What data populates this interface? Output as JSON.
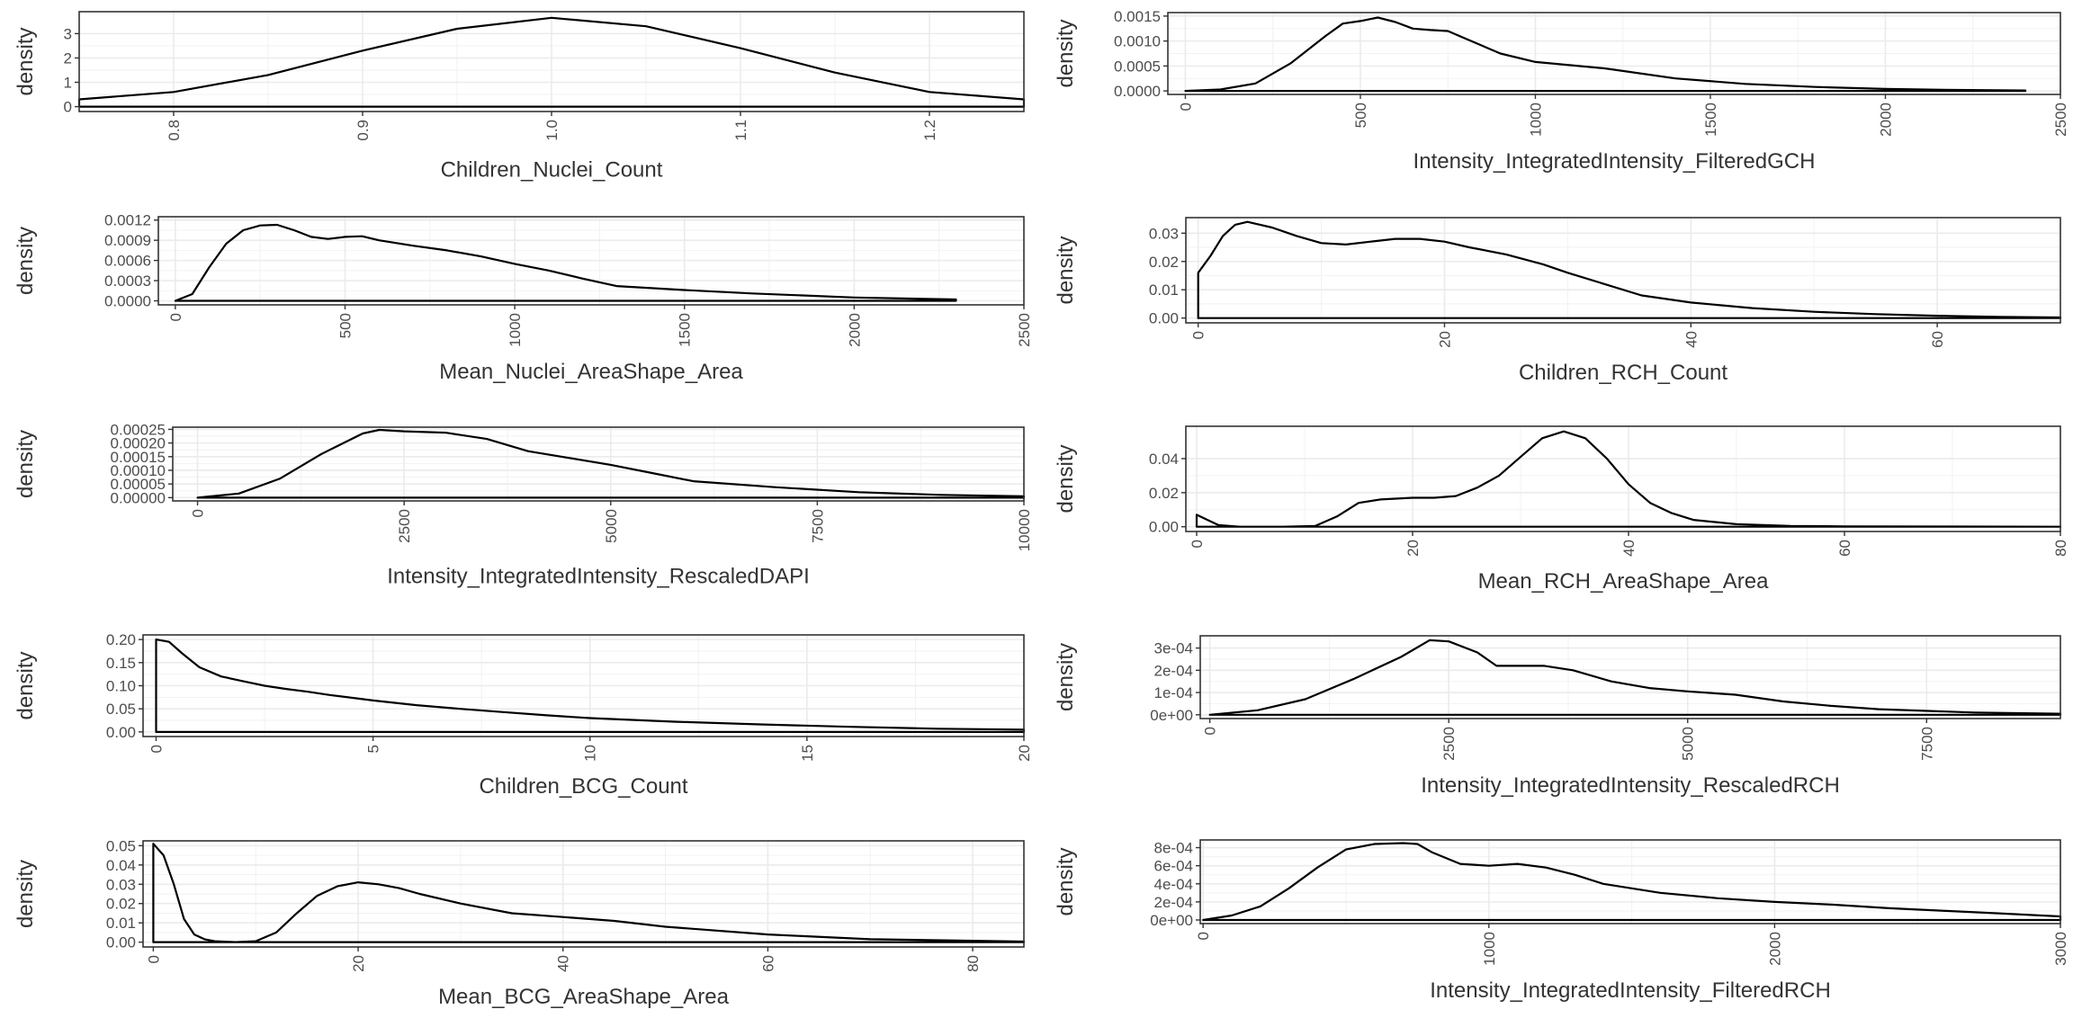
{
  "figure": {
    "background": "#ffffff",
    "grid_color": "#ebebeb",
    "grid_minor_color": "#f2f2f2",
    "line_color": "#000000",
    "text_color": "#4d4d4d",
    "title_color": "#333333"
  },
  "chart_data": [
    {
      "type": "line",
      "xlabel": "Children_Nuclei_Count",
      "ylabel": "density",
      "xlim": [
        0.75,
        1.25
      ],
      "ylim": [
        -0.2,
        3.9
      ],
      "grid": true,
      "xticks": [
        0.8,
        0.9,
        1.0,
        1.1,
        1.2
      ],
      "xtick_labels": [
        "0.8",
        "0.9",
        "1.0",
        "1.1",
        "1.2"
      ],
      "yticks": [
        0,
        1,
        2,
        3
      ],
      "ytick_labels": [
        "0",
        "1",
        "2",
        "3"
      ],
      "series": [
        {
          "x": [
            0.75,
            0.8,
            0.85,
            0.9,
            0.95,
            1.0,
            1.05,
            1.1,
            1.15,
            1.2,
            1.25
          ],
          "y": [
            0.3,
            0.6,
            1.3,
            2.3,
            3.2,
            3.65,
            3.3,
            2.4,
            1.4,
            0.6,
            0.3
          ]
        }
      ]
    },
    {
      "type": "line",
      "xlabel": "Intensity_IntegratedIntensity_FilteredGCH",
      "ylabel": "density",
      "xlim": [
        -50,
        2500
      ],
      "ylim": [
        -7e-05,
        0.00157
      ],
      "grid": true,
      "xticks": [
        0,
        500,
        1000,
        1500,
        2000,
        2500
      ],
      "xtick_labels": [
        "0",
        "500",
        "1000",
        "1500",
        "2000",
        "2500"
      ],
      "yticks": [
        0,
        0.0005,
        0.001,
        0.0015
      ],
      "ytick_labels": [
        "0.0000",
        "0.0005",
        "0.0010",
        "0.0015"
      ],
      "series": [
        {
          "x": [
            0,
            100,
            200,
            300,
            400,
            450,
            500,
            550,
            600,
            650,
            700,
            750,
            800,
            900,
            1000,
            1200,
            1400,
            1600,
            1800,
            2000,
            2200,
            2400
          ],
          "y": [
            0,
            3e-05,
            0.00015,
            0.00055,
            0.0011,
            0.00135,
            0.0014,
            0.00147,
            0.00138,
            0.00125,
            0.00122,
            0.0012,
            0.00105,
            0.00075,
            0.00058,
            0.00045,
            0.00025,
            0.00014,
            8e-05,
            4e-05,
            2e-05,
            1e-05
          ]
        }
      ]
    },
    {
      "type": "line",
      "xlabel": "Mean_Nuclei_AreaShape_Area",
      "ylabel": "density",
      "xlim": [
        -50,
        2500
      ],
      "ylim": [
        -6e-05,
        0.00125
      ],
      "grid": true,
      "xticks": [
        0,
        500,
        1000,
        1500,
        2000,
        2500
      ],
      "xtick_labels": [
        "0",
        "500",
        "1000",
        "1500",
        "2000",
        "2500"
      ],
      "yticks": [
        0,
        0.0003,
        0.0006,
        0.0009,
        0.0012
      ],
      "ytick_labels": [
        "0.0000",
        "0.0003",
        "0.0006",
        "0.0009",
        "0.0012"
      ],
      "series": [
        {
          "x": [
            0,
            50,
            100,
            150,
            200,
            250,
            300,
            350,
            400,
            450,
            500,
            550,
            600,
            700,
            800,
            900,
            1000,
            1100,
            1200,
            1300,
            1500,
            1700,
            2000,
            2300
          ],
          "y": [
            0,
            0.0001,
            0.0005,
            0.00085,
            0.00105,
            0.00112,
            0.00113,
            0.00105,
            0.00095,
            0.00092,
            0.00095,
            0.00096,
            0.0009,
            0.00082,
            0.00075,
            0.00066,
            0.00055,
            0.00045,
            0.00033,
            0.00022,
            0.00016,
            0.00011,
            5e-05,
            2e-05
          ]
        }
      ]
    },
    {
      "type": "line",
      "xlabel": "Children_RCH_Count",
      "ylabel": "density",
      "xlim": [
        -1,
        70
      ],
      "ylim": [
        -0.0017,
        0.0355
      ],
      "grid": true,
      "xticks": [
        0,
        20,
        40,
        60
      ],
      "xtick_labels": [
        "0",
        "20",
        "40",
        "60"
      ],
      "yticks": [
        0,
        0.01,
        0.02,
        0.03
      ],
      "ytick_labels": [
        "0.00",
        "0.01",
        "0.02",
        "0.03"
      ],
      "series": [
        {
          "x": [
            0,
            0,
            1,
            2,
            3,
            4,
            6,
            8,
            10,
            12,
            14,
            16,
            18,
            20,
            22,
            25,
            28,
            30,
            33,
            36,
            40,
            45,
            50,
            55,
            60,
            65,
            70
          ],
          "y": [
            0,
            0.016,
            0.022,
            0.029,
            0.033,
            0.034,
            0.032,
            0.029,
            0.0265,
            0.026,
            0.027,
            0.028,
            0.028,
            0.027,
            0.025,
            0.0225,
            0.019,
            0.016,
            0.012,
            0.008,
            0.0055,
            0.0035,
            0.0022,
            0.0014,
            0.0008,
            0.0004,
            0.0002
          ]
        }
      ]
    },
    {
      "type": "line",
      "xlabel": "Intensity_IntegratedIntensity_RescaledDAPI",
      "ylabel": "density",
      "xlim": [
        -300,
        10000
      ],
      "ylim": [
        -1.2e-05,
        0.000258
      ],
      "grid": true,
      "xticks": [
        0,
        2500,
        5000,
        7500,
        10000
      ],
      "xtick_labels": [
        "0",
        "2500",
        "5000",
        "7500",
        "10000"
      ],
      "yticks": [
        0,
        5e-05,
        0.0001,
        0.00015,
        0.0002,
        0.00025
      ],
      "ytick_labels": [
        "0.00000",
        "0.00005",
        "0.00010",
        "0.00015",
        "0.00020",
        "0.00025"
      ],
      "series": [
        {
          "x": [
            0,
            500,
            1000,
            1500,
            2000,
            2200,
            2500,
            3000,
            3500,
            4000,
            4500,
            5000,
            5500,
            6000,
            7000,
            8000,
            9000,
            10000
          ],
          "y": [
            0,
            1.5e-05,
            7e-05,
            0.00016,
            0.000235,
            0.000248,
            0.000243,
            0.000238,
            0.000215,
            0.00017,
            0.000145,
            0.00012,
            9e-05,
            6e-05,
            3.8e-05,
            2e-05,
            1e-05,
            5e-06
          ]
        }
      ]
    },
    {
      "type": "line",
      "xlabel": "Mean_RCH_AreaShape_Area",
      "ylabel": "density",
      "xlim": [
        -1,
        80
      ],
      "ylim": [
        -0.0028,
        0.059
      ],
      "grid": true,
      "xticks": [
        0,
        20,
        40,
        60,
        80
      ],
      "xtick_labels": [
        "0",
        "20",
        "40",
        "60",
        "80"
      ],
      "yticks": [
        0,
        0.02,
        0.04
      ],
      "ytick_labels": [
        "0.00",
        "0.02",
        "0.04"
      ],
      "series": [
        {
          "x": [
            0,
            0,
            1,
            2,
            4,
            8,
            11,
            13,
            15,
            17,
            20,
            22,
            24,
            26,
            28,
            30,
            32,
            34,
            36,
            38,
            40,
            42,
            44,
            46,
            50,
            55,
            60,
            70,
            80
          ],
          "y": [
            0,
            0.007,
            0.004,
            0.001,
            0,
            0,
            0.0005,
            0.006,
            0.014,
            0.016,
            0.017,
            0.017,
            0.018,
            0.023,
            0.03,
            0.041,
            0.052,
            0.056,
            0.052,
            0.04,
            0.025,
            0.014,
            0.008,
            0.004,
            0.0015,
            0.0005,
            0.0002,
            0.0001,
            0
          ]
        }
      ]
    },
    {
      "type": "line",
      "xlabel": "Children_BCG_Count",
      "ylabel": "density",
      "xlim": [
        -0.3,
        20
      ],
      "ylim": [
        -0.01,
        0.21
      ],
      "grid": true,
      "xticks": [
        0,
        5,
        10,
        15,
        20
      ],
      "xtick_labels": [
        "0",
        "5",
        "10",
        "15",
        "20"
      ],
      "yticks": [
        0,
        0.05,
        0.1,
        0.15,
        0.2
      ],
      "ytick_labels": [
        "0.00",
        "0.05",
        "0.10",
        "0.15",
        "0.20"
      ],
      "series": [
        {
          "x": [
            0,
            0,
            0.3,
            0.6,
            1,
            1.5,
            2,
            2.5,
            3,
            3.5,
            4,
            5,
            6,
            7,
            8,
            9,
            10,
            12,
            14,
            16,
            18,
            20
          ],
          "y": [
            0,
            0.2,
            0.195,
            0.17,
            0.14,
            0.12,
            0.11,
            0.1,
            0.093,
            0.087,
            0.08,
            0.068,
            0.058,
            0.05,
            0.043,
            0.036,
            0.03,
            0.022,
            0.016,
            0.011,
            0.007,
            0.005
          ]
        }
      ]
    },
    {
      "type": "line",
      "xlabel": "Intensity_IntegratedIntensity_RescaledRCH",
      "ylabel": "density",
      "xlim": [
        -100,
        8900
      ],
      "ylim": [
        -1.7e-05,
        0.000355
      ],
      "grid": true,
      "xticks": [
        0,
        2500,
        5000,
        7500
      ],
      "xtick_labels": [
        "0",
        "2500",
        "5000",
        "7500"
      ],
      "yticks": [
        0,
        0.0001,
        0.0002,
        0.0003
      ],
      "ytick_labels": [
        "0e+00",
        "1e-04",
        "2e-04",
        "3e-04"
      ],
      "series": [
        {
          "x": [
            0,
            500,
            1000,
            1500,
            2000,
            2300,
            2500,
            2800,
            3000,
            3500,
            3800,
            4200,
            4600,
            5000,
            5500,
            6000,
            6500,
            7000,
            8000,
            8900
          ],
          "y": [
            0,
            2e-05,
            7e-05,
            0.00016,
            0.00026,
            0.000335,
            0.00033,
            0.00028,
            0.00022,
            0.00022,
            0.0002,
            0.00015,
            0.00012,
            0.000105,
            9e-05,
            6e-05,
            4e-05,
            2.5e-05,
            1e-05,
            5e-06
          ]
        }
      ]
    },
    {
      "type": "line",
      "xlabel": "Mean_BCG_AreaShape_Area",
      "ylabel": "density",
      "xlim": [
        -1,
        85
      ],
      "ylim": [
        -0.0025,
        0.0525
      ],
      "grid": true,
      "xticks": [
        0,
        20,
        40,
        60,
        80
      ],
      "xtick_labels": [
        "0",
        "20",
        "40",
        "60",
        "80"
      ],
      "yticks": [
        0,
        0.01,
        0.02,
        0.03,
        0.04,
        0.05
      ],
      "ytick_labels": [
        "0.00",
        "0.01",
        "0.02",
        "0.03",
        "0.04",
        "0.05"
      ],
      "series": [
        {
          "x": [
            0,
            0,
            1,
            2,
            3,
            4,
            5,
            6,
            8,
            10,
            12,
            14,
            16,
            18,
            20,
            22,
            24,
            26,
            30,
            35,
            40,
            45,
            50,
            60,
            70,
            85
          ],
          "y": [
            0,
            0.051,
            0.045,
            0.03,
            0.012,
            0.004,
            0.0015,
            0.0005,
            0,
            0.0005,
            0.005,
            0.015,
            0.024,
            0.029,
            0.031,
            0.03,
            0.028,
            0.025,
            0.02,
            0.015,
            0.013,
            0.011,
            0.008,
            0.004,
            0.0015,
            0.0003
          ]
        }
      ]
    },
    {
      "type": "line",
      "xlabel": "Intensity_IntegratedIntensity_FilteredRCH",
      "ylabel": "density",
      "xlim": [
        -10,
        3000
      ],
      "ylim": [
        -4e-05,
        0.000885
      ],
      "grid": true,
      "xticks": [
        0,
        1000,
        2000,
        3000
      ],
      "xtick_labels": [
        "0",
        "1000",
        "2000",
        "3000"
      ],
      "yticks": [
        0,
        0.0002,
        0.0004,
        0.0006,
        0.0008
      ],
      "ytick_labels": [
        "0e+00",
        "2e-04",
        "4e-04",
        "6e-04",
        "8e-04"
      ],
      "series": [
        {
          "x": [
            0,
            100,
            200,
            300,
            400,
            500,
            600,
            700,
            750,
            800,
            900,
            1000,
            1100,
            1200,
            1300,
            1400,
            1600,
            1800,
            2000,
            2200,
            2400,
            2600,
            2800,
            3000
          ],
          "y": [
            0,
            5e-05,
            0.00015,
            0.00035,
            0.00058,
            0.00078,
            0.00084,
            0.00085,
            0.00084,
            0.00075,
            0.00062,
            0.0006,
            0.00062,
            0.00058,
            0.0005,
            0.0004,
            0.0003,
            0.00024,
            0.0002,
            0.00017,
            0.00013,
            0.0001,
            7e-05,
            4e-05
          ]
        }
      ]
    }
  ]
}
